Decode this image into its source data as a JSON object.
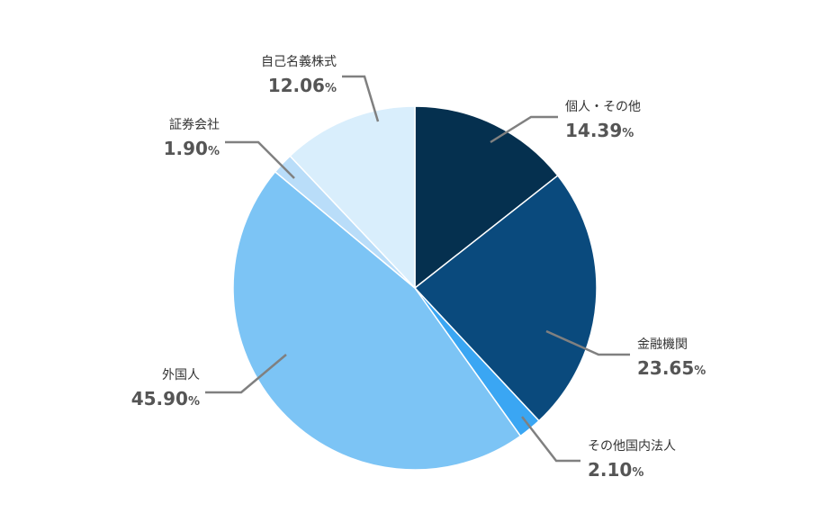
{
  "chart_data": {
    "type": "pie",
    "start": "12 o'clock",
    "direction": "clockwise",
    "slices": [
      {
        "label": "個人・その他",
        "value": 14.39,
        "value_text": "14.39",
        "unit": "%",
        "color": "#05304f"
      },
      {
        "label": "金融機関",
        "value": 23.65,
        "value_text": "23.65",
        "unit": "%",
        "color": "#0a4a7d"
      },
      {
        "label": "その他国内法人",
        "value": 2.1,
        "value_text": "2.10",
        "unit": "%",
        "color": "#3aa6f3"
      },
      {
        "label": "外国人",
        "value": 45.9,
        "value_text": "45.90",
        "unit": "%",
        "color": "#7cc4f5"
      },
      {
        "label": "証券会社",
        "value": 1.9,
        "value_text": "1.90",
        "unit": "%",
        "color": "#b9ddf9"
      },
      {
        "label": "自己名義株式",
        "value": 12.06,
        "value_text": "12.06",
        "unit": "%",
        "color": "#d9eefc"
      }
    ]
  }
}
